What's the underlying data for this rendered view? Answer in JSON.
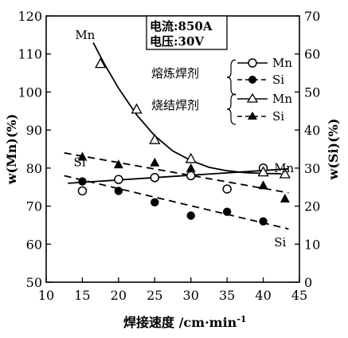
{
  "chart_data": {
    "type": "scatter",
    "conditions": [
      "电流:850A",
      "电压:30V"
    ],
    "xlabel": "焊接速度 /cm·min",
    "xlabel_superscript": "-1",
    "ylabel_left": "w(Mn)(%)",
    "ylabel_right": "w(Si)(%)",
    "xlim": [
      10,
      45
    ],
    "ylim_left": [
      50,
      120
    ],
    "ylim_right": [
      0,
      70
    ],
    "xticks": [
      10,
      15,
      20,
      25,
      30,
      35,
      40,
      45
    ],
    "yticks_left": [
      50,
      60,
      70,
      80,
      90,
      100,
      110,
      120
    ],
    "yticks_right": [
      0,
      10,
      20,
      30,
      40,
      50,
      60,
      70
    ],
    "grid": false,
    "legend": {
      "placement": "top-right",
      "groups": [
        {
          "label": "熔炼焊剂",
          "entries": [
            "Mn",
            "Si"
          ]
        },
        {
          "label": "烧结焊剂",
          "entries": [
            "Mn",
            "Si"
          ]
        }
      ]
    },
    "annotations": [
      {
        "text": "Mn",
        "x": 14,
        "y_left": 115
      },
      {
        "text": "Si",
        "x": 13.8,
        "y_left": 81.5
      },
      {
        "text": "Mn",
        "x": 41.5,
        "y_left": 80
      },
      {
        "text": "Si",
        "x": 41.5,
        "y_left": 60.5
      }
    ],
    "series": [
      {
        "name": "Mn",
        "group": "熔炼焊剂",
        "axis": "left",
        "marker": "open-circle",
        "x": [
          15,
          20,
          25,
          30,
          35,
          40
        ],
        "y": [
          74,
          77,
          77.5,
          78,
          74.5,
          80
        ]
      },
      {
        "name": "Si",
        "group": "熔炼焊剂",
        "axis": "right",
        "marker": "filled-circle",
        "x": [
          15,
          20,
          25,
          30,
          35,
          40
        ],
        "y": [
          26.5,
          24,
          21,
          17.5,
          18.5,
          16
        ]
      },
      {
        "name": "Mn",
        "group": "烧结焊剂",
        "axis": "left",
        "marker": "open-triangle",
        "x": [
          17.5,
          22.5,
          25,
          30,
          40,
          43
        ],
        "y": [
          107.5,
          95.5,
          87.5,
          82.5,
          79,
          78.5
        ]
      },
      {
        "name": "Si",
        "group": "烧结焊剂",
        "axis": "right",
        "marker": "filled-triangle",
        "x": [
          15,
          20,
          25,
          30,
          40,
          43
        ],
        "y": [
          33,
          31,
          31.5,
          30,
          25.5,
          22
        ]
      }
    ],
    "fit_curves": [
      {
        "of": "烧结焊剂 Mn",
        "axis": "left",
        "style": "solid",
        "x": [
          16.5,
          18,
          20,
          22.5,
          25,
          27.5,
          30,
          32.5,
          35,
          37.5,
          40,
          42.5
        ],
        "y": [
          113,
          107.5,
          101,
          94,
          88.5,
          84.5,
          82,
          80.2,
          79.3,
          78.8,
          78.6,
          78.5
        ]
      },
      {
        "of": "熔炼焊剂 Mn",
        "axis": "left",
        "style": "solid",
        "x": [
          13,
          43.5
        ],
        "y": [
          76,
          79.8
        ]
      },
      {
        "of": "熔炼焊剂 Si",
        "axis": "right",
        "style": "dashed",
        "x": [
          12.5,
          43.5
        ],
        "y": [
          28,
          14
        ]
      },
      {
        "of": "烧结焊剂 Si",
        "axis": "right",
        "style": "dashed",
        "x": [
          12.5,
          43.5
        ],
        "y": [
          34,
          23.5
        ]
      }
    ]
  }
}
